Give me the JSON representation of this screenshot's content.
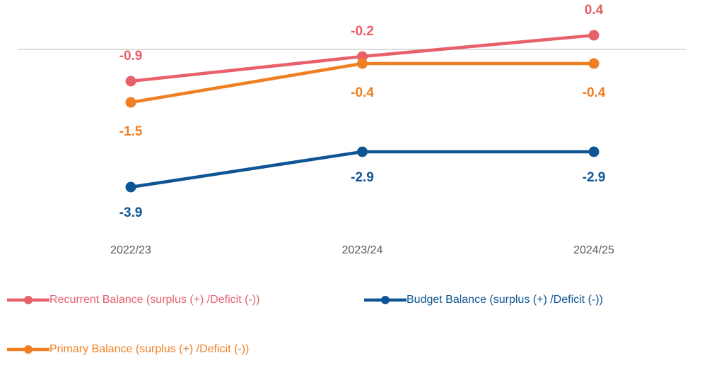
{
  "chart_data": {
    "type": "line",
    "categories": [
      "2022/23",
      "2023/24",
      "2024/25"
    ],
    "series": [
      {
        "name": "Recurrent Balance (surplus (+) /Deficit (-))",
        "color": "#e8606a",
        "values": [
          -0.9,
          -0.2,
          0.4
        ]
      },
      {
        "name": "Budget Balance (surplus (+) /Deficit (-))",
        "color": "#0f5594",
        "values": [
          -3.9,
          -2.9,
          -2.9
        ]
      },
      {
        "name": "Primary Balance (surplus (+) /Deficit (-))",
        "color": "#f07f23",
        "values": [
          -1.5,
          -0.4,
          -0.4
        ]
      }
    ],
    "ylim": [
      -5,
      1
    ]
  }
}
